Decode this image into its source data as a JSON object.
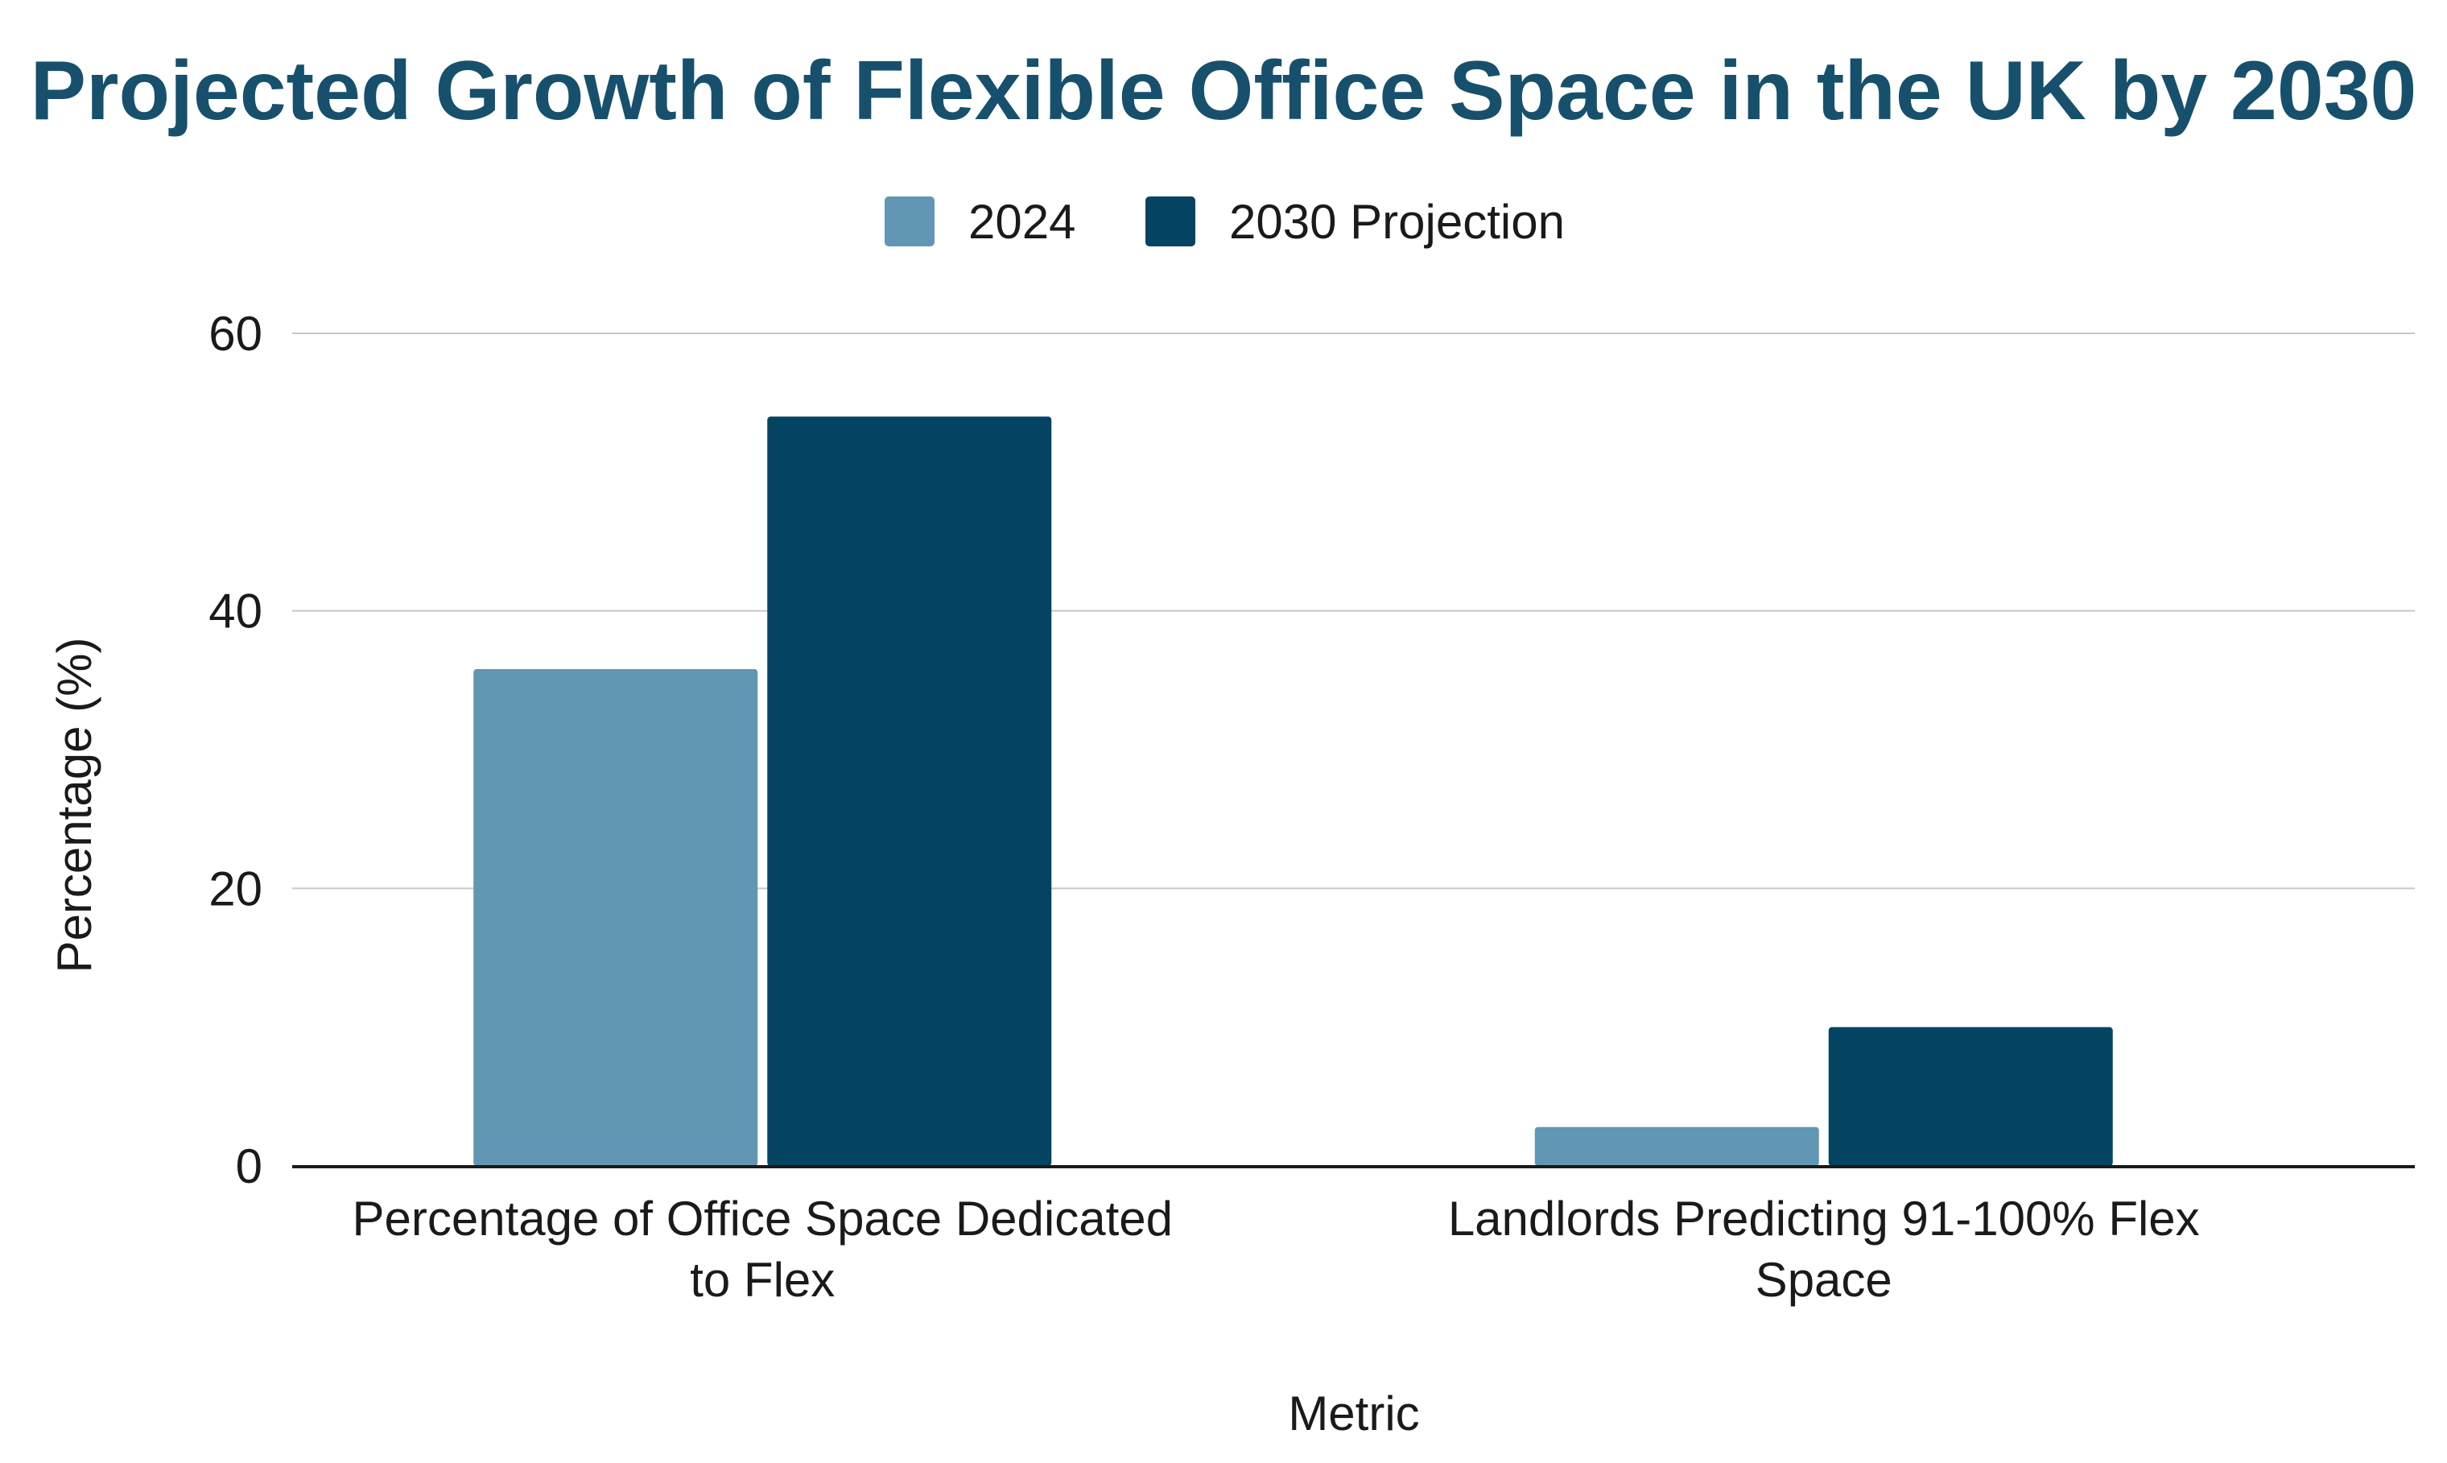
{
  "chart_data": {
    "type": "bar",
    "title": "Projected Growth of Flexible Office Space in the UK by 2030",
    "xlabel": "Metric",
    "ylabel": "Percentage (%)",
    "categories": [
      [
        "Percentage of Office Space Dedicated",
        "to Flex"
      ],
      [
        "Landlords Predicting 91-100% Flex",
        "Space"
      ]
    ],
    "series": [
      {
        "name": "2024",
        "values": [
          35.8,
          2.8
        ],
        "color": "#6196B4"
      },
      {
        "name": "2030 Projection",
        "values": [
          54,
          10
        ],
        "color": "#044462"
      }
    ],
    "ylim": [
      0,
      60
    ],
    "yticks": [
      0,
      20,
      40,
      60
    ],
    "grid": true,
    "legend_position": "top-center",
    "title_color": "#17506C"
  }
}
